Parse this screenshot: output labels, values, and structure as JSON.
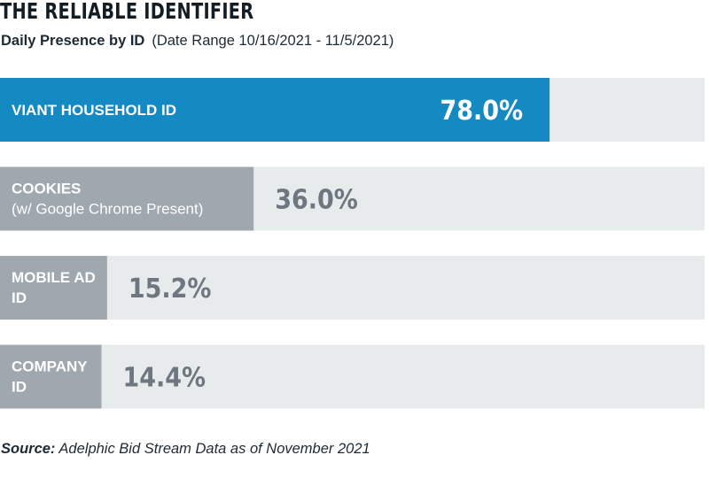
{
  "header": {
    "title": "THE RELIABLE IDENTIFIER",
    "subtitle_bold": "Daily Presence by ID",
    "subtitle_range": "(Date Range 10/16/2021 - 11/5/2021)"
  },
  "footer": {
    "source_label": "Source:",
    "source_text": "Adelphic Bid Stream Data as of November 2021"
  },
  "colors": {
    "highlight": "#1589c2",
    "bar": "#a0a8af",
    "track": "#e8ebec",
    "highlight_value_text": "#ffffff",
    "value_text": "#6e7780"
  },
  "chart_data": {
    "type": "bar",
    "orientation": "horizontal",
    "title": "THE RELIABLE IDENTIFIER",
    "subtitle": "Daily Presence by ID (Date Range 10/16/2021 - 11/5/2021)",
    "categories": [
      [
        "VIANT HOUSEHOLD ID"
      ],
      [
        "COOKIES",
        "(w/ Google Chrome Present)"
      ],
      [
        "MOBILE AD",
        "ID"
      ],
      [
        "COMPANY",
        "ID"
      ]
    ],
    "values": [
      78.0,
      36.0,
      15.2,
      14.4
    ],
    "value_labels": [
      "78.0%",
      "36.0%",
      "15.2%",
      "14.4%"
    ],
    "highlighted_index": 0,
    "xlim": [
      0,
      100
    ],
    "unit": "%",
    "grid": false,
    "legend": "none"
  }
}
